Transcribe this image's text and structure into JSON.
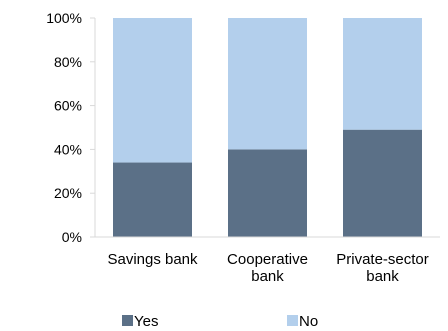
{
  "chart_data": {
    "type": "bar",
    "stacked": true,
    "categories": [
      "Savings bank",
      "Cooperative bank",
      "Private-sector bank"
    ],
    "category_lines": [
      [
        "Savings bank"
      ],
      [
        "Cooperative",
        "bank"
      ],
      [
        "Private-sector",
        "bank"
      ]
    ],
    "series": [
      {
        "name": "Yes",
        "color": "#5b7087",
        "values": [
          34,
          40,
          49
        ]
      },
      {
        "name": "No",
        "color": "#b3cfec",
        "values": [
          66,
          60,
          51
        ]
      }
    ],
    "yticks": [
      "0%",
      "20%",
      "40%",
      "60%",
      "80%",
      "100%"
    ],
    "ylim": [
      0,
      100
    ],
    "grid": false,
    "legend_position": "bottom"
  }
}
